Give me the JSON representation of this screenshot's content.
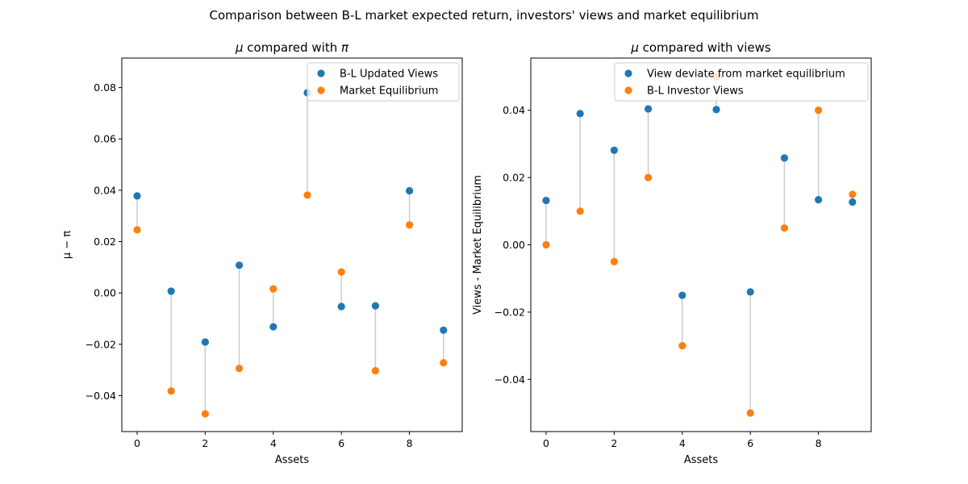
{
  "figure": {
    "title": "Comparison between B-L market expected return, investors' views and market equilibrium"
  },
  "colors": {
    "blue": "#1f77b4",
    "orange": "#ff7f0e",
    "stem": "#cccccc"
  },
  "chart_data": [
    {
      "type": "scatter",
      "title_prefix": "μ",
      "title_rest": "compared with",
      "title_suffix": "π",
      "xlabel": "Assets",
      "ylabel": "μ − π",
      "xlim": [
        -0.45,
        9.55
      ],
      "ylim": [
        -0.054,
        0.0915
      ],
      "xticks": [
        0,
        2,
        4,
        6,
        8
      ],
      "xtick_labels": [
        "0",
        "2",
        "4",
        "6",
        "8"
      ],
      "yticks": [
        -0.04,
        -0.02,
        0.0,
        0.02,
        0.04,
        0.06,
        0.08
      ],
      "ytick_labels": [
        "−0.04",
        "−0.02",
        "0.00",
        "0.02",
        "0.04",
        "0.06",
        "0.08"
      ],
      "legend_position": "top-right",
      "x": [
        0,
        1,
        2,
        3,
        4,
        5,
        6,
        7,
        8,
        9
      ],
      "series": [
        {
          "name": "B-L Updated Views",
          "color": "#1f77b4",
          "values": [
            0.0378,
            0.0007,
            -0.0191,
            0.0108,
            -0.0132,
            0.078,
            -0.0053,
            -0.005,
            0.0398,
            -0.0145
          ]
        },
        {
          "name": "Market Equilibrium",
          "color": "#ff7f0e",
          "values": [
            0.0246,
            -0.0382,
            -0.0471,
            -0.0294,
            0.0016,
            0.0381,
            0.0082,
            -0.0303,
            0.0265,
            -0.0272
          ]
        }
      ]
    },
    {
      "type": "scatter",
      "title_prefix": "μ",
      "title_rest": "compared with views",
      "title_suffix": "",
      "xlabel": "Assets",
      "ylabel": "Views - Market Equilibrium",
      "xlim": [
        -0.45,
        9.55
      ],
      "ylim": [
        -0.0555,
        0.0555
      ],
      "xticks": [
        0,
        2,
        4,
        6,
        8
      ],
      "xtick_labels": [
        "0",
        "2",
        "4",
        "6",
        "8"
      ],
      "yticks": [
        -0.04,
        -0.02,
        0.0,
        0.02,
        0.04
      ],
      "ytick_labels": [
        "−0.04",
        "−0.02",
        "0.00",
        "0.02",
        "0.04"
      ],
      "legend_position": "top-right",
      "x": [
        0,
        1,
        2,
        3,
        4,
        5,
        6,
        7,
        8,
        9
      ],
      "series": [
        {
          "name": "View deviate from market equilibrium",
          "color": "#1f77b4",
          "values": [
            0.0132,
            0.039,
            0.0281,
            0.0404,
            -0.015,
            0.0402,
            -0.014,
            0.0258,
            0.0134,
            0.0127
          ]
        },
        {
          "name": "B-L Investor Views",
          "color": "#ff7f0e",
          "values": [
            0.0,
            0.01,
            -0.005,
            0.02,
            -0.03,
            0.05,
            -0.05,
            0.005,
            0.04,
            0.015
          ]
        }
      ]
    }
  ]
}
